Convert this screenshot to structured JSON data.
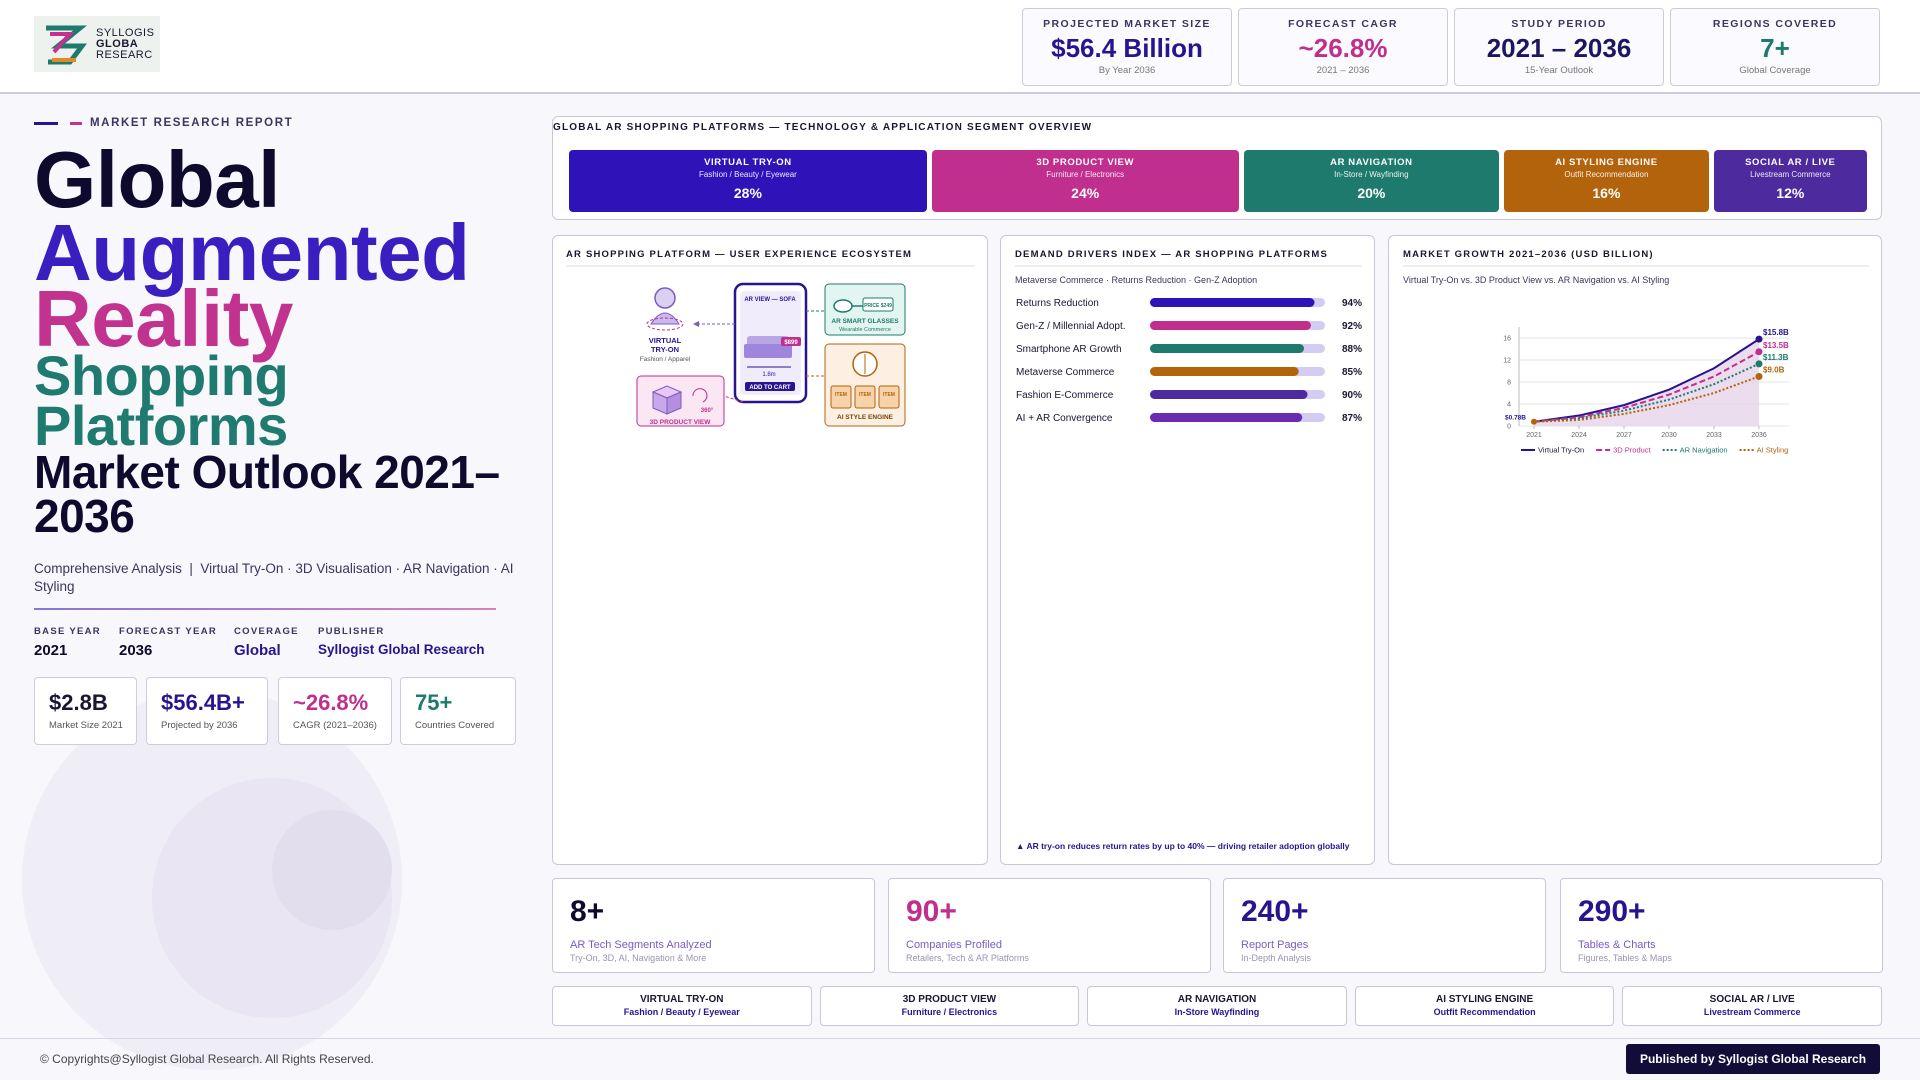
{
  "header": {
    "logo": [
      "SYLLOGIS",
      "GLOBA",
      "RESEARC"
    ],
    "stats": [
      {
        "label": "PROJECTED MARKET SIZE",
        "value": "$56.4 Billion",
        "note": "By Year 2036",
        "color": "#2a138f"
      },
      {
        "label": "FORECAST CAGR",
        "value": "~26.8%",
        "note": "2021 – 2036",
        "color": "#c02e8e"
      },
      {
        "label": "STUDY PERIOD",
        "value": "2021 – 2036",
        "note": "15-Year Outlook",
        "color": "#1d1660"
      },
      {
        "label": "REGIONS COVERED",
        "value": "7+",
        "note": "Global Coverage",
        "color": "#1e7a6c"
      }
    ]
  },
  "hero": {
    "kicker": "MARKET RESEARCH REPORT",
    "title_lines": [
      {
        "text": "Global",
        "color": "#0d0a2e"
      },
      {
        "text": "Augmented",
        "color": "#3a1ec0"
      },
      {
        "text": "Reality",
        "color": "#c2338f"
      },
      {
        "text": "Shopping",
        "color": "#1f7a6f"
      },
      {
        "text": "Platforms",
        "color": "#1f7a6f"
      },
      {
        "text": "Market Outlook 2021–2036",
        "color": "#0d0a2e"
      }
    ],
    "subtitle": "Comprehensive Analysis  |  Virtual Try-On · 3D Visualisation · AR Navigation · AI Styling",
    "meta": [
      {
        "label": "BASE YEAR",
        "value": "2021",
        "color": "#0d0a2e"
      },
      {
        "label": "FORECAST YEAR",
        "value": "2036",
        "color": "#0d0a2e"
      },
      {
        "label": "COVERAGE",
        "value": "Global",
        "color": "#2a138f"
      },
      {
        "label": "PUBLISHER",
        "value": "Syllogist Global Research",
        "color": "#2a138f"
      }
    ],
    "kpis": [
      {
        "value": "$2.8B",
        "label": "Market Size 2021",
        "color": "#1a1530"
      },
      {
        "value": "$56.4B+",
        "label": "Projected by 2036",
        "color": "#2a138f"
      },
      {
        "value": "~26.8%",
        "label": "CAGR (2021–2036)",
        "color": "#c02e8e"
      },
      {
        "value": "75+",
        "label": "Countries Covered",
        "color": "#1e7a6c"
      }
    ]
  },
  "chart_data": [
    {
      "type": "segments",
      "title": "GLOBAL AR SHOPPING PLATFORMS — TECHNOLOGY & APPLICATION SEGMENT OVERVIEW",
      "categories": [
        "VIRTUAL TRY-ON",
        "3D PRODUCT VIEW",
        "AR NAVIGATION",
        "AI STYLING ENGINE",
        "SOCIAL AR / LIVE"
      ],
      "subtitles": [
        "Fashion / Beauty / Eyewear",
        "Furniture / Electronics",
        "In-Store / Wayfinding",
        "Outfit Recommendation",
        "Livestream Commerce"
      ],
      "values": [
        28,
        24,
        20,
        16,
        12
      ],
      "value_labels": [
        "28%",
        "24%",
        "20%",
        "16%",
        "12%"
      ],
      "colors": [
        "#2f12b8",
        "#c02e8e",
        "#1e7a6c",
        "#b3630c",
        "#4d2a9e"
      ]
    },
    {
      "type": "hbar",
      "title": "DEMAND DRIVERS INDEX — AR SHOPPING PLATFORMS",
      "subtitle": "Metaverse Commerce · Returns Reduction · Gen-Z Adoption",
      "categories": [
        "Returns Reduction",
        "Gen-Z / Millennial Adopt.",
        "Smartphone AR Growth",
        "Metaverse Commerce",
        "Fashion E-Commerce",
        "AI + AR Convergence"
      ],
      "values": [
        94,
        92,
        88,
        85,
        90,
        87
      ],
      "value_labels": [
        "94%",
        "92%",
        "88%",
        "85%",
        "90%",
        "87%"
      ],
      "colors": [
        "#2f12b8",
        "#c02e8e",
        "#1e7a6c",
        "#b3630c",
        "#4d2a9e",
        "#6a2bb0"
      ],
      "xlim": [
        0,
        100
      ],
      "note": "▲ AR try-on reduces return rates by up to 40% — driving retailer adoption globally"
    },
    {
      "type": "line",
      "title": "MARKET GROWTH 2021–2036 (USD BILLION)",
      "subtitle": "Virtual Try-On vs. 3D Product View vs. AR Navigation vs. AI Styling",
      "x": [
        2021,
        2024,
        2027,
        2030,
        2033,
        2036
      ],
      "series": [
        {
          "name": "Virtual Try-On",
          "color": "#2a138f",
          "dash": "solid",
          "area": "#e6d3ea",
          "values": [
            0.78,
            1.9,
            3.8,
            6.6,
            10.5,
            15.8
          ],
          "value_labels": [
            null,
            null,
            null,
            null,
            null,
            "$15.8B"
          ]
        },
        {
          "name": "3D Product",
          "color": "#c02e8e",
          "dash": "dashed",
          "values": [
            0.78,
            1.6,
            3.3,
            5.7,
            9.0,
            13.5
          ],
          "value_labels": [
            null,
            null,
            null,
            null,
            null,
            "$13.5B"
          ]
        },
        {
          "name": "AR Navigation",
          "color": "#1e7a6c",
          "dash": "dotted",
          "values": [
            0.78,
            1.4,
            2.8,
            4.8,
            7.6,
            11.3
          ],
          "value_labels": [
            null,
            null,
            null,
            null,
            null,
            "$11.3B"
          ]
        },
        {
          "name": "AI Styling",
          "color": "#b3630c",
          "dash": "dotted",
          "values": [
            0.78,
            1.1,
            2.2,
            3.8,
            6.0,
            9.0
          ],
          "value_labels": [
            null,
            null,
            null,
            null,
            null,
            "$9.0B"
          ]
        }
      ],
      "start_label": "$0.78B",
      "xlim": [
        2020,
        2038
      ],
      "xticks": [
        2021,
        2024,
        2027,
        2030,
        2033,
        2036
      ],
      "ylim": [
        0,
        18
      ],
      "yticks": [
        0,
        4,
        8,
        12,
        16
      ],
      "grid": true
    }
  ],
  "ecosystem": {
    "title": "AR SHOPPING PLATFORM — USER EXPERIENCE ECOSYSTEM",
    "try_on": {
      "title_lines": [
        "VIRTUAL",
        "TRY-ON"
      ],
      "sub": "Fashion / Apparel"
    },
    "phone": {
      "header": "AR VIEW — SOFA",
      "price": "$899",
      "size": "1.8m",
      "button": "ADD TO CART"
    },
    "glasses": {
      "price": "PRICE $249",
      "title": "AR SMART GLASSES",
      "sub": "Wearable Commerce"
    },
    "view3d": {
      "badge": "360°",
      "title": "3D PRODUCT VIEW"
    },
    "style_engine": {
      "items": [
        "ITEM",
        "ITEM",
        "ITEM"
      ],
      "title": "AI STYLE ENGINE"
    }
  },
  "stats": [
    {
      "value": "8+",
      "label": "AR Tech Segments Analyzed",
      "note": "Try-On, 3D, AI, Navigation & More",
      "color": "#0d0a2e"
    },
    {
      "value": "90+",
      "label": "Companies Profiled",
      "note": "Retailers, Tech & AR Platforms",
      "color": "#c02e8e"
    },
    {
      "value": "240+",
      "label": "Report Pages",
      "note": "In-Depth Analysis",
      "color": "#2a138f"
    },
    {
      "value": "290+",
      "label": "Tables & Charts",
      "note": "Figures, Tables & Maps",
      "color": "#2a138f"
    }
  ],
  "tabs": [
    {
      "name": "VIRTUAL TRY-ON",
      "sub": "Fashion / Beauty / Eyewear"
    },
    {
      "name": "3D PRODUCT VIEW",
      "sub": "Furniture / Electronics"
    },
    {
      "name": "AR NAVIGATION",
      "sub": "In-Store Wayfinding"
    },
    {
      "name": "AI STYLING ENGINE",
      "sub": "Outfit Recommendation"
    },
    {
      "name": "SOCIAL AR / LIVE",
      "sub": "Livestream Commerce"
    }
  ],
  "footer": {
    "copyright": "© Copyrights@Syllogist Global Research. All Rights Reserved.",
    "publisher_button": "Published by Syllogist Global Research"
  }
}
